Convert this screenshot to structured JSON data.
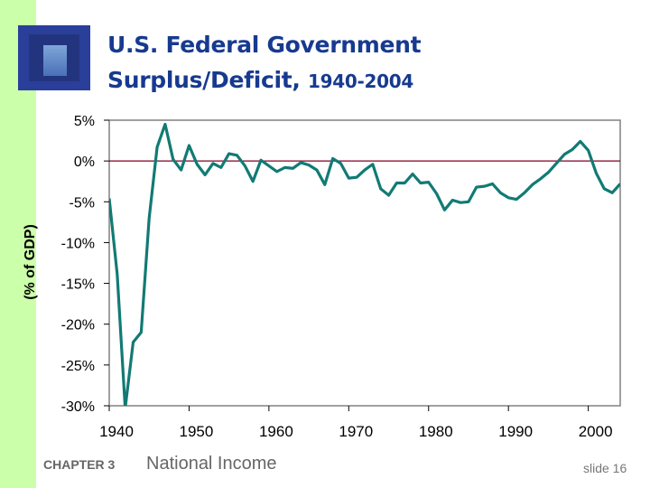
{
  "slide": {
    "title_line1": "U.S. Federal Government",
    "title_line2": "Surplus/Deficit, ",
    "title_years": "1940-2004",
    "chapter": "CHAPTER 3",
    "topic": "National Income",
    "slide_number": "slide 16",
    "sidebar_color": "#ccffaa",
    "title_color": "#173a8f"
  },
  "chart_data": {
    "type": "line",
    "title": "U.S. Federal Government Surplus/Deficit, 1940-2004",
    "ylabel": "(% of GDP)",
    "xlabel": "",
    "xlim": [
      1940,
      2004
    ],
    "ylim": [
      -30,
      5
    ],
    "yticks": [
      5,
      0,
      -5,
      -10,
      -15,
      -20,
      -25,
      -30
    ],
    "ytick_labels": [
      "5%",
      "0%",
      "-5%",
      "-10%",
      "-15%",
      "-20%",
      "-25%",
      "-30%"
    ],
    "xticks": [
      1940,
      1950,
      1960,
      1970,
      1980,
      1990,
      2000
    ],
    "xtick_labels": [
      "1940",
      "1950",
      "1960",
      "1970",
      "1980",
      "1990",
      "2000"
    ],
    "grid": false,
    "reference_line": {
      "y": 0,
      "color": "#800020"
    },
    "line_color": "#127a74",
    "x": [
      1940,
      1941,
      1942,
      1943,
      1944,
      1945,
      1946,
      1947,
      1948,
      1949,
      1950,
      1951,
      1952,
      1953,
      1954,
      1955,
      1956,
      1957,
      1958,
      1959,
      1960,
      1961,
      1962,
      1963,
      1964,
      1965,
      1966,
      1967,
      1968,
      1969,
      1970,
      1971,
      1972,
      1973,
      1974,
      1975,
      1976,
      1977,
      1978,
      1979,
      1980,
      1981,
      1982,
      1983,
      1984,
      1985,
      1986,
      1987,
      1988,
      1989,
      1990,
      1991,
      1992,
      1993,
      1994,
      1995,
      1996,
      1997,
      1998,
      1999,
      2000,
      2001,
      2002,
      2003,
      2004
    ],
    "values": [
      -4.6,
      -13.9,
      -30.3,
      -22.2,
      -21.0,
      -7.0,
      1.7,
      4.5,
      0.2,
      -1.1,
      1.9,
      -0.4,
      -1.7,
      -0.3,
      -0.8,
      0.9,
      0.7,
      -0.6,
      -2.5,
      0.1,
      -0.6,
      -1.3,
      -0.8,
      -0.9,
      -0.2,
      -0.5,
      -1.1,
      -2.9,
      0.3,
      -0.3,
      -2.1,
      -2.0,
      -1.1,
      -0.4,
      -3.4,
      -4.2,
      -2.7,
      -2.7,
      -1.6,
      -2.7,
      -2.6,
      -4.0,
      -6.0,
      -4.8,
      -5.1,
      -5.0,
      -3.2,
      -3.1,
      -2.8,
      -3.9,
      -4.5,
      -4.7,
      -3.9,
      -2.9,
      -2.2,
      -1.4,
      -0.3,
      0.8,
      1.4,
      2.4,
      1.3,
      -1.5,
      -3.4,
      -3.9,
      -2.8
    ]
  }
}
